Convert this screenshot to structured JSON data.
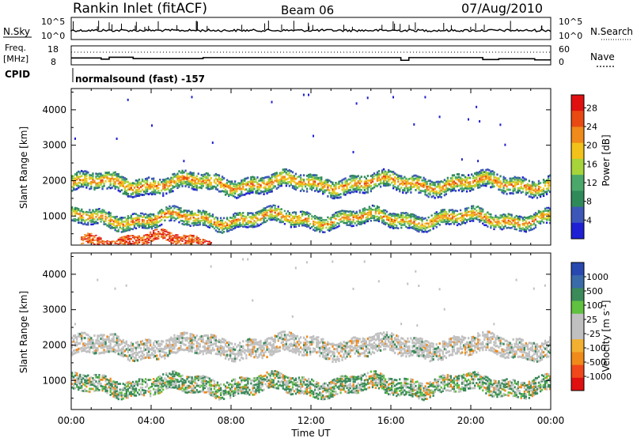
{
  "header": {
    "station": "Rankin Inlet (fitACF)",
    "beam": "Beam 06",
    "date": "07/Aug/2010"
  },
  "time_axis": {
    "ticks": [
      "00:00",
      "04:00",
      "08:00",
      "12:00",
      "16:00",
      "20:00",
      "00:00"
    ],
    "label": "Time UT"
  },
  "colors": {
    "power_scale": [
      "#1f1fd6",
      "#3d57b8",
      "#2f8a5a",
      "#4aa86a",
      "#a6d43a",
      "#f2c21a",
      "#f08a1a",
      "#e84a12",
      "#e01010"
    ],
    "velocity_scale": [
      "#e01010",
      "#f0481a",
      "#f08a1a",
      "#f2b030",
      "#c0c0c0",
      "#c0c0c0",
      "#60c040",
      "#3a8a5a",
      "#3a6aa8",
      "#2848b0"
    ]
  },
  "chart_data": [
    {
      "type": "line",
      "panel": "noise",
      "left_label": "N.Sky",
      "right_label": "N.Search",
      "left_ticks": [
        "10^5",
        "10^0"
      ],
      "right_ticks": [
        "10^5",
        "10^0"
      ],
      "note": "noise level time series, log scale"
    },
    {
      "type": "line",
      "panel": "frequency",
      "left_label_top": "Freq.",
      "left_label_bottom": "[MHz]",
      "cpid_label": "CPID",
      "right_label": "Nave",
      "left_ticks": [
        "18",
        "8"
      ],
      "right_ticks": [
        "60",
        "0"
      ],
      "freq_steps": [
        {
          "t": 0.0,
          "v": 11.6
        },
        {
          "t": 1.5,
          "v": 11.0
        },
        {
          "t": 1.9,
          "v": 12.0
        },
        {
          "t": 3.1,
          "v": 11.3
        },
        {
          "t": 6.6,
          "v": 11.8
        },
        {
          "t": 16.5,
          "v": 10.4
        },
        {
          "t": 16.9,
          "v": 11.8
        },
        {
          "t": 20.6,
          "v": 10.8
        },
        {
          "t": 21.4,
          "v": 11.2
        },
        {
          "t": 23.2,
          "v": 10.6
        },
        {
          "t": 24.0,
          "v": 10.6
        }
      ],
      "cpid_text": "normalsound (fast) -157"
    },
    {
      "type": "heatmap",
      "panel": "power",
      "ylabel": "Slant Range [km]",
      "y_ticks": [
        1000,
        2000,
        3000,
        4000
      ],
      "ylim": [
        180,
        4600
      ],
      "xlim": [
        0,
        24
      ],
      "colorbar_label": "Power [dB]",
      "colorbar_ticks": [
        "4",
        "8",
        "12",
        "16",
        "20",
        "24",
        "28"
      ],
      "echo_bands": [
        {
          "t_start": 0.0,
          "t_end": 24.0,
          "range_center": 1950,
          "range_width": 500
        },
        {
          "t_start": 0.0,
          "t_end": 24.0,
          "range_center": 950,
          "range_width": 450
        },
        {
          "t_start": 0.5,
          "t_end": 7.0,
          "range_center": 350,
          "range_width": 300
        }
      ]
    },
    {
      "type": "heatmap",
      "panel": "velocity",
      "ylabel": "Slant Range [km]",
      "y_ticks": [
        1000,
        2000,
        3000,
        4000
      ],
      "ylim": [
        180,
        4600
      ],
      "xlim": [
        0,
        24
      ],
      "colorbar_label": "Velocity [m s",
      "colorbar_label_exp": "-1",
      "colorbar_label_close": "]",
      "colorbar_ticks": [
        "1000",
        "500",
        "100",
        "25",
        "-25",
        "-100",
        "-500",
        "-1000"
      ],
      "echo_bands": [
        {
          "t_start": 0.0,
          "t_end": 24.0,
          "range_center": 2000,
          "range_width": 550
        },
        {
          "t_start": 0.0,
          "t_end": 24.0,
          "range_center": 900,
          "range_width": 500
        }
      ]
    }
  ]
}
